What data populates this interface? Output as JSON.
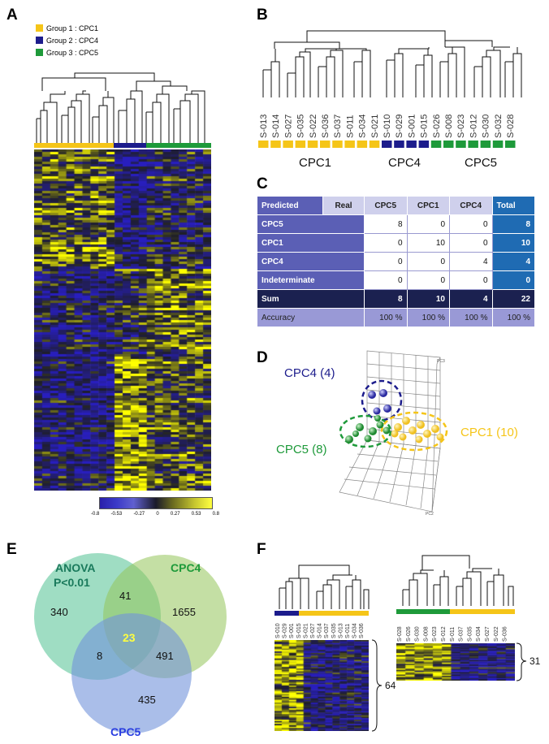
{
  "panels": {
    "a": "A",
    "b": "B",
    "c": "C",
    "d": "D",
    "e": "E",
    "f": "F"
  },
  "legend": [
    {
      "label": "Group 1 : CPC1",
      "color": "#f5c518"
    },
    {
      "label": "Group 2 : CPC4",
      "color": "#1c1c8c"
    },
    {
      "label": "Group 3 : CPC5",
      "color": "#1e9a3a"
    }
  ],
  "colorbar": {
    "ticks": [
      "-0.8",
      "-0.53",
      "-0.27",
      "0",
      "0.27",
      "0.53",
      "0.8"
    ]
  },
  "panel_b": {
    "samples": [
      "S-013",
      "S-014",
      "S-027",
      "S-035",
      "S-022",
      "S-036",
      "S-037",
      "S-011",
      "S-034",
      "S-021",
      "S-010",
      "S-029",
      "S-001",
      "S-015",
      "S-026",
      "S-008",
      "S-023",
      "S-012",
      "S-030",
      "S-032",
      "S-028"
    ],
    "groups": [
      {
        "label": "CPC1"
      },
      {
        "label": "CPC4"
      },
      {
        "label": "CPC5"
      }
    ]
  },
  "table": {
    "header": [
      "Predicted",
      "Real",
      "CPC5",
      "CPC1",
      "CPC4",
      "Total"
    ],
    "rows": [
      {
        "label": "CPC5",
        "values": [
          "8",
          "0",
          "0"
        ],
        "total": "8"
      },
      {
        "label": "CPC1",
        "values": [
          "0",
          "10",
          "0"
        ],
        "total": "10"
      },
      {
        "label": "CPC4",
        "values": [
          "0",
          "0",
          "4"
        ],
        "total": "4"
      },
      {
        "label": "Indeterminate",
        "values": [
          "0",
          "0",
          "0"
        ],
        "total": "0"
      }
    ],
    "sum": {
      "label": "Sum",
      "values": [
        "8",
        "10",
        "4"
      ],
      "total": "22"
    },
    "accuracy": {
      "label": "Accuracy",
      "values": [
        "100 %",
        "100 %",
        "100 %"
      ],
      "total": "100 %"
    }
  },
  "pca": {
    "cpc4": "CPC4 (4)",
    "cpc5": "CPC5 (8)",
    "cpc1": "CPC1 (10)",
    "pc2": "PC2",
    "pc3": "PC3"
  },
  "venn": {
    "anova_line1": "ANOVA",
    "anova_line2": "P<0.01",
    "cpc4": "CPC4",
    "cpc5": "CPC5",
    "n_anova": "340",
    "n_cpc4": "1655",
    "n_cpc5": "435",
    "n_a4": "41",
    "n_a5": "8",
    "n_45": "491",
    "n_all": "23"
  },
  "panel_f": {
    "left_samples": [
      "S-010",
      "S-029",
      "S-001",
      "S-015",
      "S-021",
      "S-027",
      "S-014",
      "S-037",
      "S-035",
      "S-013",
      "S-011",
      "S-034",
      "S-036"
    ],
    "right_samples": [
      "S-028",
      "S-026",
      "S-030",
      "S-008",
      "S-023",
      "S-012",
      "S-011",
      "S-037",
      "S-035",
      "S-034",
      "S-027",
      "S-022",
      "S-036"
    ],
    "left_count": "64",
    "right_count": "31"
  }
}
